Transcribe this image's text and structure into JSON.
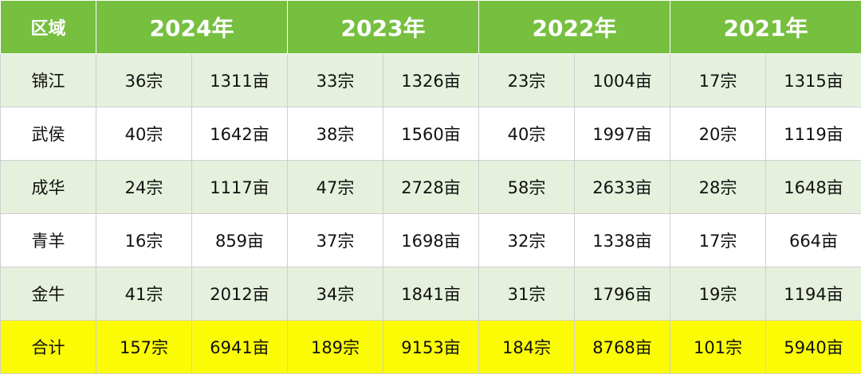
{
  "header": {
    "region": "区域",
    "years": [
      "2024年",
      "2023年",
      "2022年",
      "2021年"
    ]
  },
  "rows": [
    {
      "region": "锦江",
      "cells": [
        "36宗",
        "1311亩",
        "33宗",
        "1326亩",
        "23宗",
        "1004亩",
        "17宗",
        "1315亩"
      ]
    },
    {
      "region": "武侯",
      "cells": [
        "40宗",
        "1642亩",
        "38宗",
        "1560亩",
        "40宗",
        "1997亩",
        "20宗",
        "1119亩"
      ]
    },
    {
      "region": "成华",
      "cells": [
        "24宗",
        "1117亩",
        "47宗",
        "2728亩",
        "58宗",
        "2633亩",
        "28宗",
        "1648亩"
      ]
    },
    {
      "region": "青羊",
      "cells": [
        "16宗",
        "859亩",
        "37宗",
        "1698亩",
        "32宗",
        "1338亩",
        "17宗",
        "664亩"
      ]
    },
    {
      "region": "金牛",
      "cells": [
        "41宗",
        "2012亩",
        "34宗",
        "1841亩",
        "31宗",
        "1796亩",
        "19宗",
        "1194亩"
      ]
    }
  ],
  "total": {
    "region": "合计",
    "cells": [
      "157宗",
      "6941亩",
      "189宗",
      "9153亩",
      "184宗",
      "8768亩",
      "101宗",
      "5940亩"
    ]
  },
  "colors": {
    "header_bg": "#76bf3f",
    "row_alt_bg": "#e5f1dc",
    "total_bg": "#fbfb06"
  }
}
